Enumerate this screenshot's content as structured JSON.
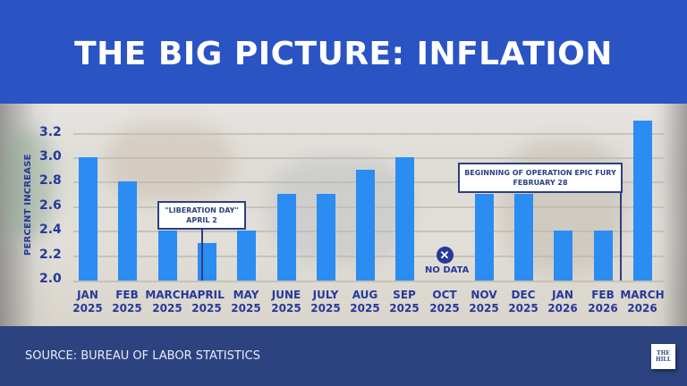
{
  "header": {
    "title": "THE BIG PICTURE: INFLATION"
  },
  "footer": {
    "source": "SOURCE: BUREAU OF LABOR STATISTICS",
    "logo_line1": "THE",
    "logo_line2": "HILL"
  },
  "colors": {
    "header_bg": "#2a54c3",
    "footer_bg": "#2d4380",
    "bar": "#2b8cf2",
    "text_navy": "#25399a"
  },
  "chart_data": {
    "type": "bar",
    "title": "THE BIG PICTURE: INFLATION",
    "xlabel": "",
    "ylabel": "PERCENT INCREASE",
    "ylim": [
      2.0,
      3.3
    ],
    "yticks": [
      "2.0",
      "2.2",
      "2.4",
      "2.6",
      "2.8",
      "3.0",
      "3.2"
    ],
    "grid": true,
    "categories": [
      {
        "month": "JAN",
        "year": "2025"
      },
      {
        "month": "FEB",
        "year": "2025"
      },
      {
        "month": "MARCH",
        "year": "2025"
      },
      {
        "month": "APRIL",
        "year": "2025"
      },
      {
        "month": "MAY",
        "year": "2025"
      },
      {
        "month": "JUNE",
        "year": "2025"
      },
      {
        "month": "JULY",
        "year": "2025"
      },
      {
        "month": "AUG",
        "year": "2025"
      },
      {
        "month": "SEP",
        "year": "2025"
      },
      {
        "month": "OCT",
        "year": "2025"
      },
      {
        "month": "NOV",
        "year": "2025"
      },
      {
        "month": "DEC",
        "year": "2025"
      },
      {
        "month": "JAN",
        "year": "2026"
      },
      {
        "month": "FEB",
        "year": "2026"
      },
      {
        "month": "MARCH",
        "year": "2026"
      }
    ],
    "values": [
      3.0,
      2.8,
      2.4,
      2.3,
      2.4,
      2.7,
      2.7,
      2.9,
      3.0,
      null,
      2.7,
      2.7,
      2.4,
      2.4,
      3.3
    ],
    "no_data_label": "NO DATA",
    "annotations": [
      {
        "line1": "\"LIBERATION DAY\"",
        "line2": "APRIL 2",
        "at": "APRIL 2025"
      },
      {
        "line1": "BEGINNING OF OPERATION EPIC FURY",
        "line2": "FEBRUARY 28",
        "at": "FEB 2026"
      }
    ]
  }
}
